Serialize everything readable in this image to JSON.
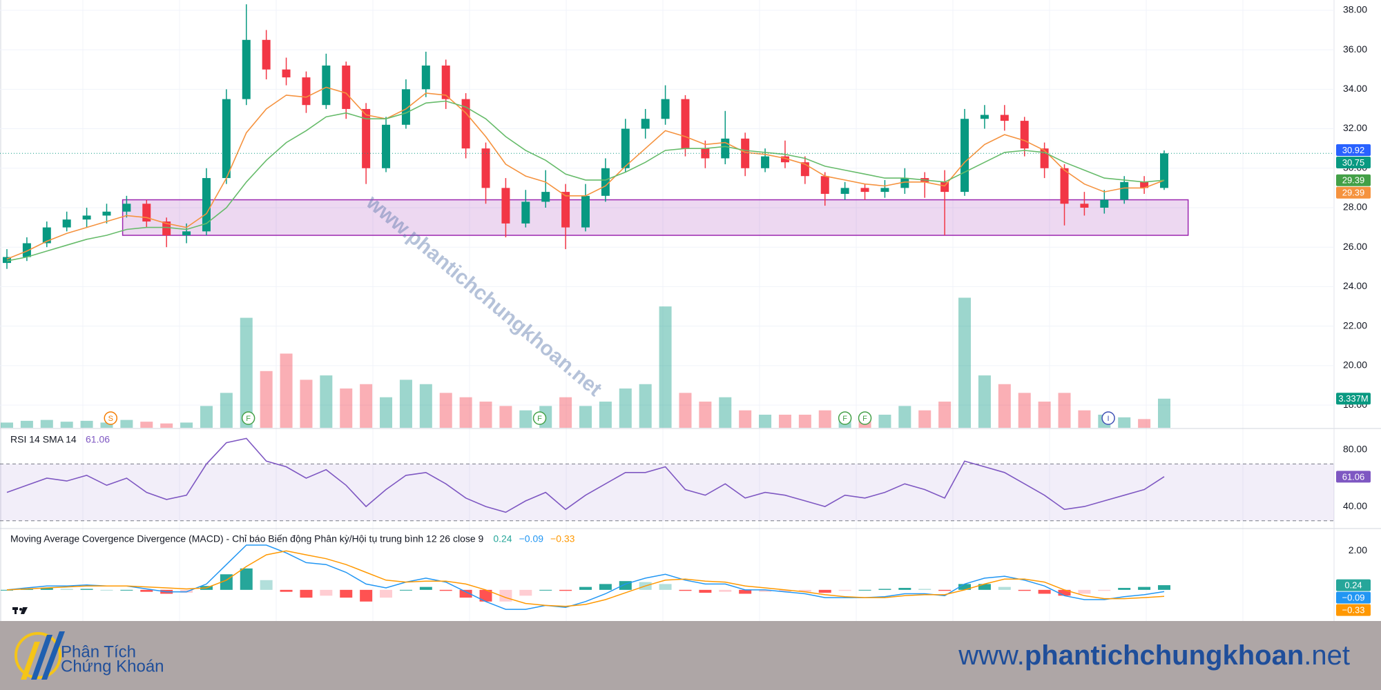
{
  "chart_data": {
    "type": "candlestick",
    "ohlc": [
      [
        25.2,
        25.9,
        24.9,
        25.5
      ],
      [
        25.5,
        26.5,
        25.3,
        26.2
      ],
      [
        26.2,
        27.3,
        26.0,
        27.0
      ],
      [
        27.0,
        27.8,
        26.8,
        27.4
      ],
      [
        27.4,
        28.0,
        27.0,
        27.6
      ],
      [
        27.6,
        28.2,
        27.2,
        27.8
      ],
      [
        27.8,
        28.6,
        27.5,
        28.2
      ],
      [
        28.2,
        28.4,
        27.0,
        27.3
      ],
      [
        27.3,
        27.5,
        26.0,
        26.6
      ],
      [
        26.6,
        27.2,
        26.2,
        26.8
      ],
      [
        26.8,
        30.0,
        26.6,
        29.5
      ],
      [
        29.5,
        34.0,
        29.2,
        33.5
      ],
      [
        33.5,
        38.3,
        33.2,
        36.5
      ],
      [
        36.5,
        37.0,
        34.5,
        35.0
      ],
      [
        35.0,
        35.6,
        34.2,
        34.6
      ],
      [
        34.6,
        34.9,
        32.8,
        33.2
      ],
      [
        33.2,
        35.8,
        33.0,
        35.2
      ],
      [
        35.2,
        35.4,
        32.5,
        33.0
      ],
      [
        33.0,
        33.3,
        29.2,
        30.0
      ],
      [
        30.0,
        32.6,
        29.8,
        32.2
      ],
      [
        32.2,
        34.5,
        32.0,
        34.0
      ],
      [
        34.0,
        35.9,
        33.6,
        35.2
      ],
      [
        35.2,
        35.5,
        33.0,
        33.5
      ],
      [
        33.5,
        33.8,
        30.5,
        31.0
      ],
      [
        31.0,
        31.3,
        28.2,
        29.0
      ],
      [
        29.0,
        29.5,
        26.5,
        27.2
      ],
      [
        27.2,
        28.9,
        27.0,
        28.3
      ],
      [
        28.3,
        29.9,
        28.0,
        28.8
      ],
      [
        28.8,
        29.2,
        25.9,
        27.0
      ],
      [
        27.0,
        29.2,
        26.8,
        28.6
      ],
      [
        28.6,
        30.5,
        28.3,
        30.0
      ],
      [
        30.0,
        32.5,
        29.8,
        32.0
      ],
      [
        32.0,
        33.0,
        31.5,
        32.5
      ],
      [
        32.5,
        34.2,
        32.2,
        33.5
      ],
      [
        33.5,
        33.7,
        30.6,
        31.0
      ],
      [
        31.0,
        31.4,
        30.0,
        30.5
      ],
      [
        30.5,
        32.9,
        30.2,
        31.5
      ],
      [
        31.5,
        31.8,
        29.6,
        30.0
      ],
      [
        30.0,
        31.0,
        29.8,
        30.6
      ],
      [
        30.6,
        31.4,
        30.0,
        30.3
      ],
      [
        30.3,
        30.6,
        29.2,
        29.6
      ],
      [
        29.6,
        29.8,
        28.1,
        28.7
      ],
      [
        28.7,
        29.3,
        28.4,
        29.0
      ],
      [
        29.0,
        29.2,
        28.4,
        28.8
      ],
      [
        28.8,
        29.4,
        28.5,
        29.0
      ],
      [
        29.0,
        30.0,
        28.7,
        29.5
      ],
      [
        29.5,
        29.8,
        28.5,
        29.3
      ],
      [
        29.3,
        29.9,
        26.6,
        28.8
      ],
      [
        28.8,
        33.0,
        28.6,
        32.5
      ],
      [
        32.5,
        33.2,
        32.0,
        32.7
      ],
      [
        32.7,
        33.2,
        31.9,
        32.4
      ],
      [
        32.4,
        32.6,
        30.6,
        31.0
      ],
      [
        31.0,
        31.3,
        29.5,
        30.0
      ],
      [
        30.0,
        30.2,
        27.1,
        28.2
      ],
      [
        28.2,
        28.8,
        27.6,
        28.0
      ],
      [
        28.0,
        28.9,
        27.7,
        28.4
      ],
      [
        28.4,
        29.6,
        28.2,
        29.3
      ],
      [
        29.3,
        29.6,
        28.7,
        29.0
      ],
      [
        29.0,
        30.9,
        28.9,
        30.75
      ]
    ],
    "colors": {
      "up": "#089981",
      "down": "#f23645"
    },
    "ylim": [
      16.85,
      38.52
    ],
    "yticks": [
      {
        "value": 18,
        "label": "18.00"
      },
      {
        "value": 20,
        "label": "20.00"
      },
      {
        "value": 22,
        "label": "22.00"
      },
      {
        "value": 24,
        "label": "24.00"
      },
      {
        "value": 26,
        "label": "26.00"
      },
      {
        "value": 28,
        "label": "28.00"
      },
      {
        "value": 30,
        "label": "30.00"
      },
      {
        "value": 32,
        "label": "32.00"
      },
      {
        "value": 34,
        "label": "34.00"
      },
      {
        "value": 36,
        "label": "36.00"
      },
      {
        "value": 38,
        "label": "38.00"
      }
    ],
    "grid": true,
    "moving_averages": [
      {
        "color": "#f5923e",
        "values": [
          25.4,
          25.8,
          26.3,
          26.7,
          27.0,
          27.3,
          27.6,
          27.5,
          27.2,
          27.0,
          27.7,
          29.5,
          31.8,
          33.0,
          33.7,
          33.6,
          34.1,
          33.8,
          32.7,
          32.5,
          33.0,
          33.8,
          33.7,
          32.8,
          31.6,
          30.2,
          29.6,
          29.3,
          28.6,
          28.6,
          29.1,
          30.1,
          31.0,
          31.9,
          31.6,
          31.2,
          31.3,
          30.8,
          30.7,
          30.5,
          30.2,
          29.6,
          29.4,
          29.2,
          29.1,
          29.3,
          29.3,
          29.1,
          30.3,
          31.2,
          31.7,
          31.4,
          30.9,
          29.9,
          29.2,
          28.8,
          29.0,
          29.0,
          29.39
        ]
      },
      {
        "color": "#66bb6a",
        "values": [
          25.3,
          25.5,
          25.8,
          26.1,
          26.4,
          26.6,
          26.9,
          27.0,
          27.0,
          26.9,
          27.2,
          28.0,
          29.3,
          30.4,
          31.3,
          31.9,
          32.6,
          32.8,
          32.5,
          32.5,
          32.8,
          33.3,
          33.4,
          33.1,
          32.5,
          31.6,
          30.9,
          30.4,
          29.7,
          29.4,
          29.4,
          29.8,
          30.3,
          30.9,
          31.0,
          31.0,
          31.1,
          30.9,
          30.8,
          30.7,
          30.5,
          30.1,
          29.9,
          29.7,
          29.5,
          29.5,
          29.4,
          29.3,
          29.8,
          30.3,
          30.8,
          30.9,
          30.8,
          30.3,
          29.9,
          29.5,
          29.4,
          29.3,
          29.39
        ]
      }
    ],
    "volume": {
      "values": [
        0.6,
        0.8,
        0.9,
        0.7,
        0.8,
        0.6,
        0.9,
        0.7,
        0.5,
        0.6,
        2.5,
        4.0,
        12.6,
        6.5,
        8.5,
        5.5,
        6.0,
        4.5,
        5.0,
        3.5,
        5.5,
        5.0,
        4.0,
        3.5,
        3.0,
        2.5,
        2.0,
        2.5,
        3.5,
        2.5,
        3.0,
        4.5,
        5.0,
        13.9,
        4.0,
        3.0,
        3.5,
        2.0,
        1.5,
        1.5,
        1.5,
        2.0,
        1.2,
        1.0,
        1.5,
        2.5,
        2.0,
        3.0,
        14.9,
        6.0,
        5.0,
        4.0,
        3.0,
        4.0,
        2.0,
        1.5,
        1.2,
        1.0,
        3.337
      ],
      "vlim": [
        0,
        49
      ],
      "last": {
        "value": 3.337,
        "label": "3.337M"
      }
    },
    "zone": {
      "x": [
        5.8,
        59.2
      ],
      "y": [
        26.6,
        28.4
      ],
      "color": "#9c27b0"
    },
    "events": [
      {
        "label": "S",
        "x": 5.2,
        "color": "#f57c00"
      },
      {
        "label": "F",
        "x": 12.1,
        "color": "#43a047"
      },
      {
        "label": "F",
        "x": 26.7,
        "color": "#43a047"
      },
      {
        "label": "F",
        "x": 42,
        "color": "#43a047"
      },
      {
        "label": "F",
        "x": 43,
        "color": "#43a047"
      },
      {
        "label": "I",
        "x": 55.2,
        "color": "#3f51b5"
      }
    ],
    "price_badges": [
      {
        "value": 30.92,
        "color": "#2962ff"
      },
      {
        "value": 30.75,
        "color": "#089981"
      },
      {
        "value": 29.39,
        "color": "#43a047"
      },
      {
        "value": 29.39,
        "color": "#f5923e"
      }
    ],
    "watermark": "www.phantichchungkhoan.net",
    "rsi": {
      "title": "RSI 14 SMA 14",
      "current": 61.06,
      "color": "#7e57c2",
      "values": [
        50,
        55,
        60,
        58,
        62,
        55,
        60,
        50,
        45,
        48,
        70,
        85,
        88,
        72,
        68,
        60,
        66,
        55,
        40,
        52,
        62,
        64,
        56,
        46,
        40,
        36,
        44,
        50,
        38,
        48,
        56,
        64,
        64,
        68,
        52,
        48,
        56,
        46,
        50,
        48,
        44,
        40,
        48,
        46,
        50,
        56,
        52,
        46,
        72,
        68,
        64,
        56,
        48,
        38,
        40,
        44,
        48,
        52,
        61.06
      ],
      "ylim": [
        25,
        95
      ],
      "band": [
        30,
        70
      ],
      "yticks": [
        {
          "value": 80,
          "label": "80.00"
        },
        {
          "value": 40,
          "label": "40.00"
        }
      ]
    },
    "macd": {
      "title": "Moving Average Covergence Divergence (MACD) - Chỉ báo Biến động Phân kỳ/Hội tụ trung bình 12 26 close 9",
      "legend": [
        {
          "value": 0.24,
          "label": "0.24",
          "color": "#26a69a"
        },
        {
          "value": -0.09,
          "label": "−0.09",
          "color": "#2196f3"
        },
        {
          "value": -0.33,
          "label": "−0.33",
          "color": "#ff9800"
        }
      ],
      "macd_color": "#2196f3",
      "signal_color": "#ff9800",
      "macd": [
        0.0,
        0.1,
        0.2,
        0.2,
        0.25,
        0.2,
        0.2,
        0.05,
        -0.1,
        -0.1,
        0.3,
        1.3,
        2.3,
        2.3,
        1.9,
        1.4,
        1.3,
        0.9,
        0.3,
        0.1,
        0.4,
        0.6,
        0.4,
        -0.1,
        -0.6,
        -1.0,
        -1.0,
        -0.8,
        -0.9,
        -0.6,
        -0.2,
        0.3,
        0.6,
        0.8,
        0.5,
        0.3,
        0.3,
        0.0,
        0.0,
        -0.1,
        -0.2,
        -0.4,
        -0.4,
        -0.4,
        -0.35,
        -0.2,
        -0.2,
        -0.3,
        0.3,
        0.6,
        0.7,
        0.5,
        0.2,
        -0.3,
        -0.5,
        -0.5,
        -0.35,
        -0.25,
        -0.09
      ],
      "signal": [
        0.0,
        0.05,
        0.1,
        0.15,
        0.2,
        0.2,
        0.2,
        0.15,
        0.1,
        0.05,
        0.1,
        0.5,
        1.2,
        1.8,
        2.0,
        1.8,
        1.6,
        1.3,
        0.9,
        0.5,
        0.4,
        0.45,
        0.45,
        0.3,
        0.0,
        -0.4,
        -0.7,
        -0.8,
        -0.85,
        -0.75,
        -0.5,
        -0.15,
        0.2,
        0.5,
        0.55,
        0.45,
        0.4,
        0.2,
        0.1,
        0.0,
        -0.1,
        -0.25,
        -0.35,
        -0.4,
        -0.4,
        -0.3,
        -0.25,
        -0.25,
        0.0,
        0.3,
        0.55,
        0.55,
        0.4,
        0.0,
        -0.3,
        -0.45,
        -0.45,
        -0.4,
        -0.33
      ],
      "histogram": [
        0.0,
        0.05,
        0.1,
        0.05,
        0.05,
        0.0,
        0.0,
        -0.1,
        -0.2,
        -0.15,
        0.2,
        0.8,
        1.1,
        0.5,
        -0.1,
        -0.4,
        -0.3,
        -0.4,
        -0.6,
        -0.4,
        0.0,
        0.15,
        -0.05,
        -0.4,
        -0.6,
        -0.6,
        -0.3,
        0.0,
        -0.05,
        0.15,
        0.3,
        0.45,
        0.4,
        0.3,
        -0.05,
        -0.15,
        -0.1,
        -0.2,
        -0.1,
        -0.1,
        -0.1,
        -0.15,
        -0.05,
        0.0,
        0.05,
        0.1,
        0.05,
        -0.05,
        0.3,
        0.3,
        0.15,
        -0.05,
        -0.2,
        -0.3,
        -0.2,
        -0.05,
        0.1,
        0.15,
        0.24
      ],
      "ylim": [
        -1.6,
        3.15
      ],
      "yticks": [
        {
          "value": 2,
          "label": "2.00"
        }
      ]
    }
  },
  "footer": {
    "logo_line1": "Phân Tích",
    "logo_line2": "Chứng Khoán",
    "site": [
      "www.",
      "phantichchungkhoan",
      ".net"
    ]
  }
}
